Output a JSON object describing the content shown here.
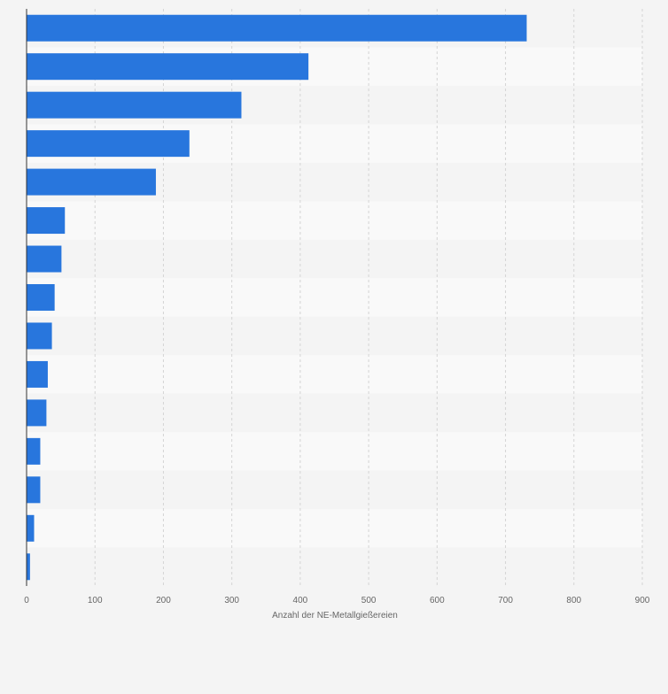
{
  "chart_data": {
    "type": "bar",
    "orientation": "horizontal",
    "title": "",
    "xlabel": "Anzahl der NE-Metallgießereien",
    "ylabel": "",
    "categories": [
      "",
      "",
      "",
      "",
      "",
      "",
      "",
      "",
      "",
      "",
      "",
      "",
      "",
      "",
      ""
    ],
    "values": [
      731,
      412,
      314,
      238,
      189,
      56,
      51,
      41,
      37,
      31,
      29,
      20,
      20,
      11,
      5
    ],
    "xlim": [
      0,
      900
    ],
    "xticks": [
      0,
      100,
      200,
      300,
      400,
      500,
      600,
      700,
      800,
      900
    ],
    "grid": true,
    "legend": "none",
    "colors": {
      "bar": "#2876dd",
      "background": "#f4f4f4",
      "band_light": "#f9f9f9",
      "band_dark": "#f4f4f4",
      "grid": "#d4d4d4",
      "axis": "#333333",
      "tick_text": "#666666"
    }
  }
}
